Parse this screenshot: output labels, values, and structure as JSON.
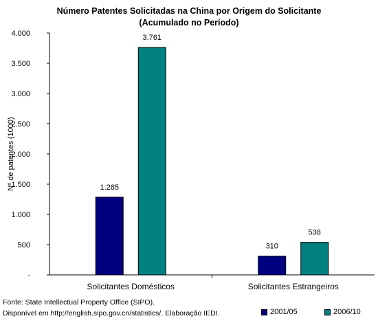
{
  "chart_data": {
    "type": "bar",
    "title": "Número Patentes Solicitadas na China por Origem do Solicitante",
    "subtitle": "(Acumulado no Período)",
    "ylabel": "Nº de patentes (1000)",
    "xlabel": "",
    "ylim": [
      0,
      4000
    ],
    "yticks": [
      {
        "value": 0,
        "label": "-"
      },
      {
        "value": 500,
        "label": "500"
      },
      {
        "value": 1000,
        "label": "1.000"
      },
      {
        "value": 1500,
        "label": "1.500"
      },
      {
        "value": 2000,
        "label": "2.000"
      },
      {
        "value": 2500,
        "label": "2.500"
      },
      {
        "value": 3000,
        "label": "3.000"
      },
      {
        "value": 3500,
        "label": "3.500"
      },
      {
        "value": 4000,
        "label": "4.000"
      }
    ],
    "categories": [
      "Solicitantes Domésticos",
      "Solicitantes  Estrangeiros"
    ],
    "series": [
      {
        "name": "2001/05",
        "color": "#000080",
        "values": [
          1285,
          310
        ],
        "labels": [
          "1.285",
          "310"
        ]
      },
      {
        "name": "2006/10",
        "color": "#008080",
        "values": [
          3761,
          538
        ],
        "labels": [
          "3.761",
          "538"
        ]
      }
    ],
    "grid": false,
    "legend_position": "bottom-right"
  },
  "footer": {
    "source": "Fonte: State Intellectual Property Office (SIPO).",
    "note": "Disponível em http://english.sipo.gov.cn/statistics/. Elaboração IEDI."
  }
}
